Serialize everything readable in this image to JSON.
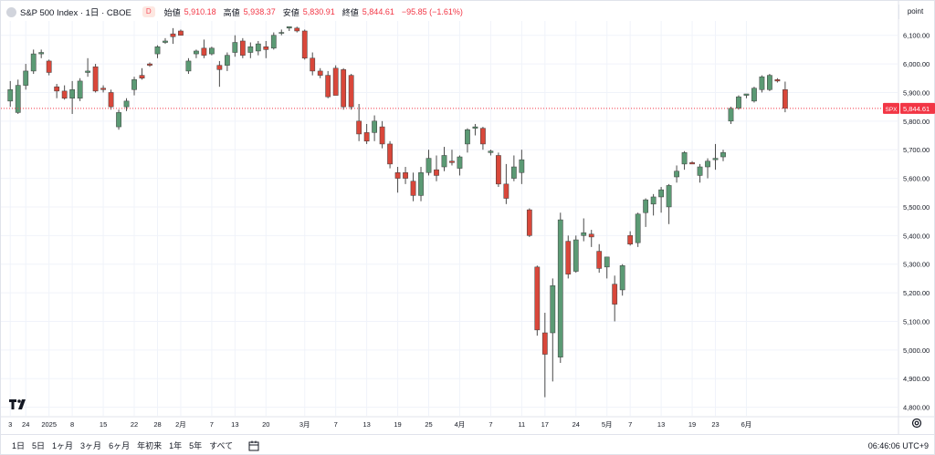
{
  "legend": {
    "symbol": "S&P 500 Index · 1日 · CBOE",
    "badge": "D",
    "open_label": "始値",
    "open_value": "5,910.18",
    "high_label": "高値",
    "high_value": "5,938.37",
    "low_label": "安値",
    "low_value": "5,830.91",
    "close_label": "終値",
    "close_value": "5,844.61",
    "change": "−95.85 (−1.61%)"
  },
  "unit_label": "point",
  "last_price": {
    "ticker": "SPX",
    "value": "5,844.61",
    "price": 5844.61
  },
  "colors": {
    "up": "#5b9a74",
    "down": "#d9473a",
    "grid": "#f0f3fa",
    "last_line": "#f23645",
    "axis_text": "#131722"
  },
  "bottom_bar": {
    "ranges": [
      "1日",
      "5日",
      "1ヶ月",
      "3ヶ月",
      "6ヶ月",
      "年初来",
      "1年",
      "5年",
      "すべて"
    ],
    "clock": "06:46:06 UTC+9"
  },
  "chart_data": {
    "type": "candlestick",
    "y_ticks": [
      4800,
      4900,
      5000,
      5100,
      5200,
      5300,
      5400,
      5500,
      5600,
      5700,
      5800,
      5900,
      6000,
      6100
    ],
    "y_tick_labels": [
      "4,800.00",
      "4,900.00",
      "5,000.00",
      "5,100.00",
      "5,200.00",
      "5,300.00",
      "5,400.00",
      "5,500.00",
      "5,600.00",
      "5,700.00",
      "5,800.00",
      "5,900.00",
      "6,000.00",
      "6,100.00"
    ],
    "ylim": [
      4770,
      6150
    ],
    "x_ticks": [
      {
        "label": "3",
        "index": 0
      },
      {
        "label": "24",
        "index": 2
      },
      {
        "label": "2025",
        "index": 5
      },
      {
        "label": "8",
        "index": 8
      },
      {
        "label": "15",
        "index": 12
      },
      {
        "label": "22",
        "index": 16
      },
      {
        "label": "28",
        "index": 19
      },
      {
        "label": "2月",
        "index": 22
      },
      {
        "label": "7",
        "index": 26
      },
      {
        "label": "13",
        "index": 29
      },
      {
        "label": "20",
        "index": 33
      },
      {
        "label": "3月",
        "index": 38
      },
      {
        "label": "7",
        "index": 42
      },
      {
        "label": "13",
        "index": 46
      },
      {
        "label": "19",
        "index": 50
      },
      {
        "label": "25",
        "index": 54
      },
      {
        "label": "4月",
        "index": 58
      },
      {
        "label": "7",
        "index": 62
      },
      {
        "label": "11",
        "index": 66
      },
      {
        "label": "17",
        "index": 69
      },
      {
        "label": "24",
        "index": 73
      },
      {
        "label": "5月",
        "index": 77
      },
      {
        "label": "7",
        "index": 80
      },
      {
        "label": "13",
        "index": 84
      },
      {
        "label": "19",
        "index": 88
      },
      {
        "label": "23",
        "index": 91
      },
      {
        "label": "6月",
        "index": 95
      }
    ],
    "candles": [
      {
        "o": 5870,
        "h": 5940,
        "l": 5850,
        "c": 5910
      },
      {
        "o": 5830,
        "h": 5945,
        "l": 5825,
        "c": 5925
      },
      {
        "o": 5925,
        "h": 6000,
        "l": 5910,
        "c": 5975
      },
      {
        "o": 5975,
        "h": 6050,
        "l": 5965,
        "c": 6035
      },
      {
        "o": 6035,
        "h": 6050,
        "l": 6020,
        "c": 6040
      },
      {
        "o": 6010,
        "h": 6015,
        "l": 5960,
        "c": 5970
      },
      {
        "o": 5920,
        "h": 5930,
        "l": 5880,
        "c": 5905
      },
      {
        "o": 5905,
        "h": 5925,
        "l": 5875,
        "c": 5880
      },
      {
        "o": 5880,
        "h": 5940,
        "l": 5825,
        "c": 5910
      },
      {
        "o": 5880,
        "h": 5950,
        "l": 5870,
        "c": 5940
      },
      {
        "o": 5970,
        "h": 6020,
        "l": 5955,
        "c": 5975
      },
      {
        "o": 5990,
        "h": 6000,
        "l": 5900,
        "c": 5905
      },
      {
        "o": 5915,
        "h": 5925,
        "l": 5900,
        "c": 5910
      },
      {
        "o": 5900,
        "h": 5910,
        "l": 5840,
        "c": 5850
      },
      {
        "o": 5780,
        "h": 5840,
        "l": 5770,
        "c": 5830
      },
      {
        "o": 5850,
        "h": 5880,
        "l": 5835,
        "c": 5870
      },
      {
        "o": 5910,
        "h": 5955,
        "l": 5890,
        "c": 5945
      },
      {
        "o": 5960,
        "h": 5985,
        "l": 5945,
        "c": 5950
      },
      {
        "o": 6000,
        "h": 6005,
        "l": 5990,
        "c": 5995
      },
      {
        "o": 6035,
        "h": 6065,
        "l": 6020,
        "c": 6060
      },
      {
        "o": 6075,
        "h": 6090,
        "l": 6070,
        "c": 6080
      },
      {
        "o": 6105,
        "h": 6125,
        "l": 6070,
        "c": 6095
      },
      {
        "o": 6115,
        "h": 6120,
        "l": 6100,
        "c": 6100
      },
      {
        "o": 5975,
        "h": 6020,
        "l": 5965,
        "c": 6010
      },
      {
        "o": 6035,
        "h": 6050,
        "l": 6020,
        "c": 6045
      },
      {
        "o": 6055,
        "h": 6085,
        "l": 6020,
        "c": 6030
      },
      {
        "o": 6035,
        "h": 6060,
        "l": 6030,
        "c": 6055
      },
      {
        "o": 5995,
        "h": 6010,
        "l": 5920,
        "c": 5980
      },
      {
        "o": 5995,
        "h": 6040,
        "l": 5975,
        "c": 6030
      },
      {
        "o": 6040,
        "h": 6100,
        "l": 6025,
        "c": 6075
      },
      {
        "o": 6080,
        "h": 6090,
        "l": 6020,
        "c": 6030
      },
      {
        "o": 6040,
        "h": 6075,
        "l": 6020,
        "c": 6060
      },
      {
        "o": 6045,
        "h": 6080,
        "l": 6030,
        "c": 6070
      },
      {
        "o": 6060,
        "h": 6080,
        "l": 6020,
        "c": 6050
      },
      {
        "o": 6055,
        "h": 6110,
        "l": 6050,
        "c": 6100
      },
      {
        "o": 6110,
        "h": 6120,
        "l": 6100,
        "c": 6110
      },
      {
        "o": 6125,
        "h": 6130,
        "l": 6115,
        "c": 6130
      },
      {
        "o": 6125,
        "h": 6130,
        "l": 6110,
        "c": 6115
      },
      {
        "o": 6115,
        "h": 6120,
        "l": 6015,
        "c": 6020
      },
      {
        "o": 6020,
        "h": 6040,
        "l": 5960,
        "c": 5975
      },
      {
        "o": 5975,
        "h": 5985,
        "l": 5950,
        "c": 5960
      },
      {
        "o": 5960,
        "h": 5975,
        "l": 5880,
        "c": 5885
      },
      {
        "o": 5985,
        "h": 5995,
        "l": 5900,
        "c": 5890
      },
      {
        "o": 5980,
        "h": 5985,
        "l": 5840,
        "c": 5850
      },
      {
        "o": 5960,
        "h": 5965,
        "l": 5840,
        "c": 5850
      },
      {
        "o": 5800,
        "h": 5860,
        "l": 5730,
        "c": 5755
      },
      {
        "o": 5760,
        "h": 5790,
        "l": 5720,
        "c": 5730
      },
      {
        "o": 5760,
        "h": 5820,
        "l": 5730,
        "c": 5800
      },
      {
        "o": 5780,
        "h": 5800,
        "l": 5705,
        "c": 5720
      },
      {
        "o": 5720,
        "h": 5730,
        "l": 5635,
        "c": 5650
      },
      {
        "o": 5620,
        "h": 5640,
        "l": 5550,
        "c": 5600
      },
      {
        "o": 5620,
        "h": 5640,
        "l": 5580,
        "c": 5600
      },
      {
        "o": 5590,
        "h": 5620,
        "l": 5520,
        "c": 5540
      },
      {
        "o": 5540,
        "h": 5640,
        "l": 5520,
        "c": 5620
      },
      {
        "o": 5620,
        "h": 5700,
        "l": 5610,
        "c": 5670
      },
      {
        "o": 5630,
        "h": 5680,
        "l": 5590,
        "c": 5610
      },
      {
        "o": 5640,
        "h": 5710,
        "l": 5625,
        "c": 5680
      },
      {
        "o": 5660,
        "h": 5700,
        "l": 5645,
        "c": 5655
      },
      {
        "o": 5635,
        "h": 5680,
        "l": 5610,
        "c": 5675
      },
      {
        "o": 5720,
        "h": 5775,
        "l": 5690,
        "c": 5770
      },
      {
        "o": 5775,
        "h": 5790,
        "l": 5750,
        "c": 5780
      },
      {
        "o": 5775,
        "h": 5780,
        "l": 5700,
        "c": 5720
      },
      {
        "o": 5690,
        "h": 5700,
        "l": 5680,
        "c": 5695
      },
      {
        "o": 5680,
        "h": 5690,
        "l": 5570,
        "c": 5580
      },
      {
        "o": 5580,
        "h": 5650,
        "l": 5510,
        "c": 5530
      },
      {
        "o": 5600,
        "h": 5680,
        "l": 5590,
        "c": 5640
      },
      {
        "o": 5620,
        "h": 5700,
        "l": 5580,
        "c": 5665
      },
      {
        "o": 5490,
        "h": 5495,
        "l": 5395,
        "c": 5400
      },
      {
        "o": 5290,
        "h": 5295,
        "l": 5050,
        "c": 5070
      },
      {
        "o": 5060,
        "h": 5130,
        "l": 4835,
        "c": 4985
      },
      {
        "o": 5060,
        "h": 5250,
        "l": 4890,
        "c": 5225
      },
      {
        "o": 4975,
        "h": 5480,
        "l": 4955,
        "c": 5455
      },
      {
        "o": 5380,
        "h": 5400,
        "l": 5250,
        "c": 5265
      },
      {
        "o": 5275,
        "h": 5400,
        "l": 5270,
        "c": 5385
      },
      {
        "o": 5400,
        "h": 5460,
        "l": 5380,
        "c": 5410
      },
      {
        "o": 5405,
        "h": 5420,
        "l": 5360,
        "c": 5395
      },
      {
        "o": 5345,
        "h": 5370,
        "l": 5270,
        "c": 5285
      },
      {
        "o": 5290,
        "h": 5325,
        "l": 5250,
        "c": 5325
      },
      {
        "o": 5230,
        "h": 5260,
        "l": 5100,
        "c": 5160
      },
      {
        "o": 5210,
        "h": 5300,
        "l": 5190,
        "c": 5295
      },
      {
        "o": 5400,
        "h": 5415,
        "l": 5365,
        "c": 5370
      },
      {
        "o": 5375,
        "h": 5480,
        "l": 5360,
        "c": 5475
      },
      {
        "o": 5480,
        "h": 5530,
        "l": 5430,
        "c": 5525
      },
      {
        "o": 5510,
        "h": 5545,
        "l": 5470,
        "c": 5535
      },
      {
        "o": 5535,
        "h": 5570,
        "l": 5480,
        "c": 5560
      },
      {
        "o": 5500,
        "h": 5580,
        "l": 5440,
        "c": 5575
      },
      {
        "o": 5605,
        "h": 5645,
        "l": 5585,
        "c": 5625
      },
      {
        "o": 5650,
        "h": 5695,
        "l": 5630,
        "c": 5690
      },
      {
        "o": 5655,
        "h": 5660,
        "l": 5650,
        "c": 5650
      },
      {
        "o": 5610,
        "h": 5650,
        "l": 5585,
        "c": 5640
      },
      {
        "o": 5640,
        "h": 5670,
        "l": 5600,
        "c": 5660
      },
      {
        "o": 5665,
        "h": 5720,
        "l": 5630,
        "c": 5670
      },
      {
        "o": 5675,
        "h": 5700,
        "l": 5660,
        "c": 5690
      },
      {
        "o": 5800,
        "h": 5850,
        "l": 5790,
        "c": 5845
      },
      {
        "o": 5845,
        "h": 5890,
        "l": 5840,
        "c": 5885
      },
      {
        "o": 5890,
        "h": 5895,
        "l": 5880,
        "c": 5895
      },
      {
        "o": 5870,
        "h": 5920,
        "l": 5865,
        "c": 5915
      },
      {
        "o": 5910,
        "h": 5960,
        "l": 5900,
        "c": 5955
      },
      {
        "o": 5910,
        "h": 5965,
        "l": 5905,
        "c": 5960
      },
      {
        "o": 5945,
        "h": 5950,
        "l": 5935,
        "c": 5940
      },
      {
        "o": 5910,
        "h": 5938,
        "l": 5831,
        "c": 5845
      }
    ]
  }
}
